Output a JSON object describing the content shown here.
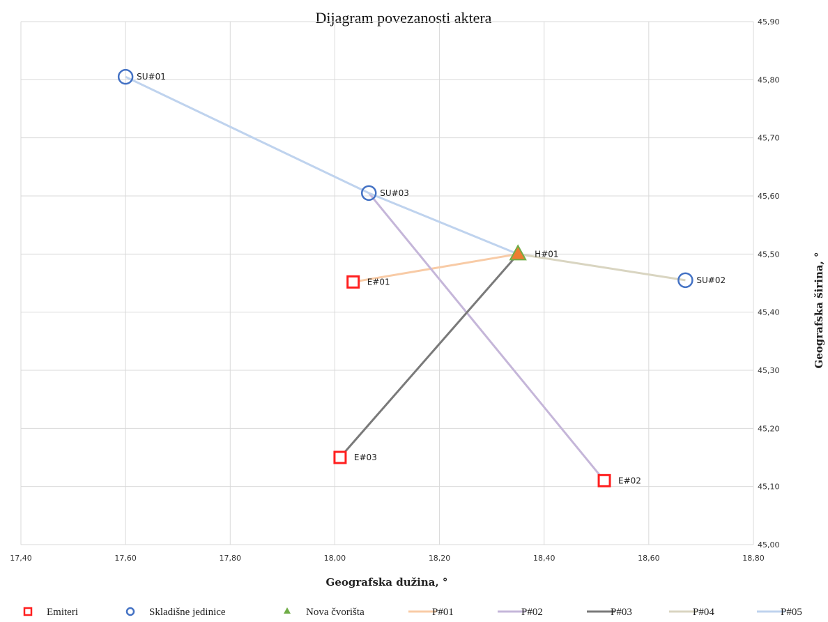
{
  "chart_data": {
    "type": "scatter",
    "title": "Dijagram povezanosti aktera",
    "xlabel": "Geografska dužina, °",
    "ylabel": "Geografska širina, °",
    "xlim": [
      17.4,
      18.8
    ],
    "ylim": [
      45.0,
      45.9
    ],
    "x_ticks": [
      "17,40",
      "17,60",
      "17,80",
      "18,00",
      "18,20",
      "18,40",
      "18,60",
      "18,80"
    ],
    "y_ticks": [
      "45,00",
      "45,10",
      "45,20",
      "45,30",
      "45,40",
      "45,50",
      "45,60",
      "45,70",
      "45,80",
      "45,90"
    ],
    "grid": "vertical and horizontal",
    "legend_position": "bottom",
    "points": [
      {
        "label": "SU#01",
        "x": 17.6,
        "y": 45.805,
        "series": "Skladišne jedinice"
      },
      {
        "label": "SU#03",
        "x": 18.065,
        "y": 45.605,
        "series": "Skladišne jedinice"
      },
      {
        "label": "SU#02",
        "x": 18.67,
        "y": 45.455,
        "series": "Skladišne jedinice"
      },
      {
        "label": "H#01",
        "x": 18.35,
        "y": 45.5,
        "series": "Nova čvorišta"
      },
      {
        "label": "E#01",
        "x": 18.035,
        "y": 45.452,
        "series": "Emiteri"
      },
      {
        "label": "E#03",
        "x": 18.01,
        "y": 45.15,
        "series": "Emiteri"
      },
      {
        "label": "E#02",
        "x": 18.515,
        "y": 45.11,
        "series": "Emiteri"
      }
    ],
    "series": [
      {
        "name": "Emiteri",
        "kind": "marker",
        "marker": "square",
        "color": "#ff1f1f"
      },
      {
        "name": "Skladišne jedinice",
        "kind": "marker",
        "marker": "circle",
        "color": "#4472c4"
      },
      {
        "name": "Nova čvorišta",
        "kind": "marker",
        "marker": "triangle",
        "color": "#70ad47"
      },
      {
        "name": "P#01",
        "kind": "line",
        "color": "#f8cba6",
        "from": "E#01",
        "to": "H#01"
      },
      {
        "name": "P#02",
        "kind": "line",
        "color": "#c5b6d9",
        "from": "SU#03",
        "to": "E#02"
      },
      {
        "name": "P#03",
        "kind": "line",
        "color": "#7a7a7a",
        "from": "E#03",
        "to": "H#01"
      },
      {
        "name": "P#04",
        "kind": "line",
        "color": "#d9d5c1",
        "from": "H#01",
        "to": "SU#02"
      },
      {
        "name": "P#05",
        "kind": "line",
        "color": "#bfd3ee",
        "path": [
          "SU#01",
          "SU#03",
          "H#01"
        ]
      }
    ]
  }
}
